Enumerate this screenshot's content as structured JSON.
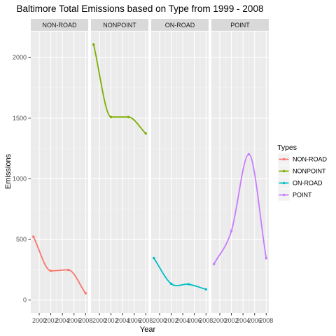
{
  "chart_data": {
    "type": "line",
    "title": "Baltimore Total Emissions based on Type from 1999 - 2008",
    "xlabel": "Year",
    "ylabel": "Emissions",
    "x": [
      1999,
      2002,
      2005,
      2008
    ],
    "x_ticks": [
      2000,
      2002,
      2004,
      2006,
      2008
    ],
    "x_tick_labels": [
      "2000",
      "2002",
      "2004",
      "2006",
      "2008"
    ],
    "xlim": [
      1999,
      2008
    ],
    "ylim": [
      0,
      2110
    ],
    "y_ticks": [
      0,
      500,
      1000,
      1500,
      2000
    ],
    "y_tick_labels": [
      "0",
      "500",
      "1000",
      "1500",
      "2000"
    ],
    "grid": true,
    "facets": [
      "NON-ROAD",
      "NONPOINT",
      "ON-ROAD",
      "POINT"
    ],
    "legend": {
      "title": "Types",
      "position": "right"
    },
    "series": [
      {
        "name": "NON-ROAD",
        "color": "#F8766D",
        "values": [
          522.9,
          240.8,
          248.9,
          55.8
        ]
      },
      {
        "name": "NONPOINT",
        "color": "#7CAE00",
        "values": [
          2107.6,
          1509.5,
          1509.5,
          1373.2
        ]
      },
      {
        "name": "ON-ROAD",
        "color": "#00BFC4",
        "values": [
          346.8,
          134.3,
          130.4,
          88.3
        ]
      },
      {
        "name": "POINT",
        "color": "#C77CFF",
        "values": [
          296.8,
          569.3,
          1202.5,
          344.98
        ]
      }
    ]
  }
}
